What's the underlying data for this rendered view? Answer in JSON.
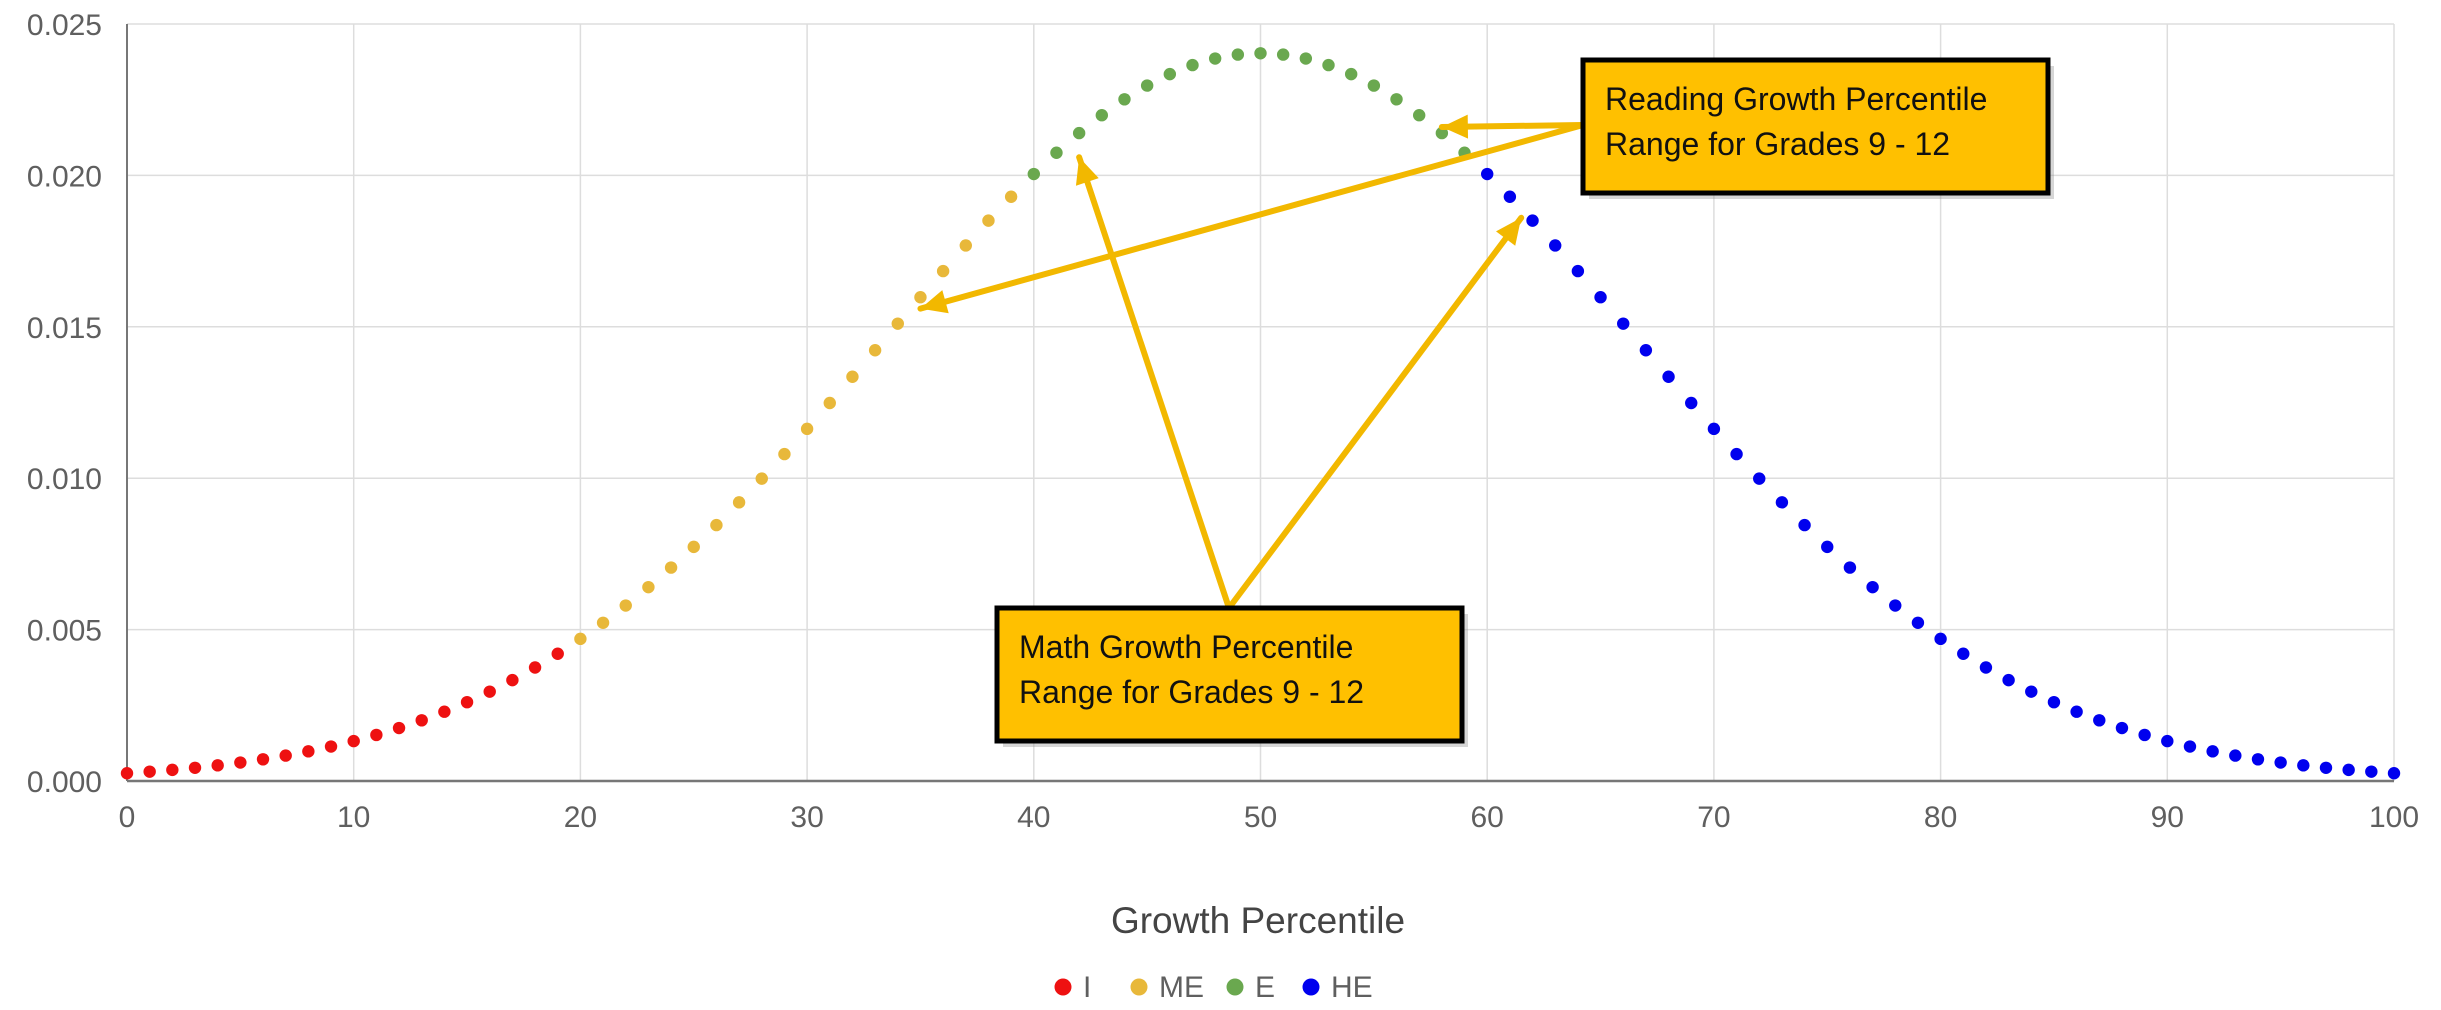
{
  "chart_data": {
    "type": "scatter",
    "title": "",
    "xlabel": "Growth Percentile",
    "ylabel": "",
    "xlim": [
      0,
      100
    ],
    "ylim": [
      0,
      0.025
    ],
    "grid": true,
    "legend_position": "bottom",
    "x_ticks": [
      "0",
      "10",
      "20",
      "30",
      "40",
      "50",
      "60",
      "70",
      "80",
      "90",
      "100"
    ],
    "y_ticks": [
      "0.000",
      "0.005",
      "0.010",
      "0.015",
      "0.020",
      "0.025"
    ],
    "distribution": {
      "mean": 50,
      "sd": 16.6
    },
    "series": [
      {
        "name": "I",
        "color": "#ee1111",
        "x_range": [
          0,
          19
        ]
      },
      {
        "name": "ME",
        "color": "#e8b83a",
        "x_range": [
          20,
          39
        ]
      },
      {
        "name": "E",
        "color": "#6aa84f",
        "x_range": [
          40,
          59
        ]
      },
      {
        "name": "HE",
        "color": "#0000ee",
        "x_range": [
          60,
          100
        ]
      }
    ],
    "annotations": [
      {
        "lines": [
          "Reading Growth Percentile",
          "Range for Grades 9 - 12"
        ],
        "arrow_targets": [
          [
            58,
            0.0216
          ],
          [
            35,
            0.0156
          ]
        ]
      },
      {
        "lines": [
          "Math Growth Percentile",
          "Range for Grades 9 - 12"
        ],
        "arrow_targets": [
          [
            42,
            0.0206
          ],
          [
            61.5,
            0.0186
          ]
        ]
      }
    ]
  },
  "colors": {
    "callout_fill": "#ffc000",
    "callout_border": "#000000",
    "arrow": "#f2b800",
    "grid": "#dddddd",
    "axis": "#777777"
  }
}
